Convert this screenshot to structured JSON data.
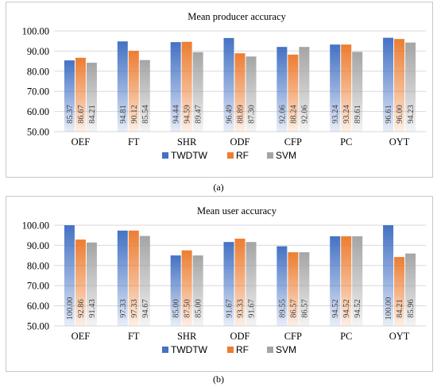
{
  "captions": [
    "(a)",
    "(b)"
  ],
  "colors": {
    "TWDTW": "#4472c4",
    "RF": "#ed7d31",
    "SVM": "#a5a5a5"
  },
  "chart_data": [
    {
      "type": "bar",
      "title": "Mean producer accuracy",
      "categories": [
        "OEF",
        "FT",
        "SHR",
        "ODF",
        "CFP",
        "PC",
        "OYT"
      ],
      "series": [
        {
          "name": "TWDTW",
          "values": [
            85.37,
            94.81,
            94.44,
            96.49,
            92.06,
            93.24,
            96.61
          ]
        },
        {
          "name": "RF",
          "values": [
            86.67,
            90.12,
            94.59,
            88.89,
            88.24,
            93.24,
            96.0
          ]
        },
        {
          "name": "SVM",
          "values": [
            84.21,
            85.54,
            89.47,
            87.3,
            92.06,
            89.61,
            94.23
          ]
        }
      ],
      "ylim": [
        50,
        100
      ],
      "yticks": [
        "50.00",
        "60.00",
        "70.00",
        "80.00",
        "90.00",
        "100.00"
      ],
      "legend": "bottom",
      "grid": true
    },
    {
      "type": "bar",
      "title": "Mean user accuracy",
      "categories": [
        "OEF",
        "FT",
        "SHR",
        "ODF",
        "CFP",
        "PC",
        "OYT"
      ],
      "series": [
        {
          "name": "TWDTW",
          "values": [
            100.0,
            97.33,
            85.0,
            91.67,
            89.55,
            94.52,
            100.0
          ]
        },
        {
          "name": "RF",
          "values": [
            92.86,
            97.33,
            87.5,
            93.33,
            86.57,
            94.52,
            84.21
          ]
        },
        {
          "name": "SVM",
          "values": [
            91.43,
            94.67,
            85.0,
            91.67,
            86.57,
            94.52,
            85.96
          ]
        }
      ],
      "ylim": [
        50,
        100
      ],
      "yticks": [
        "50.00",
        "60.00",
        "70.00",
        "80.00",
        "90.00",
        "100.00"
      ],
      "legend": "bottom",
      "grid": true
    }
  ]
}
